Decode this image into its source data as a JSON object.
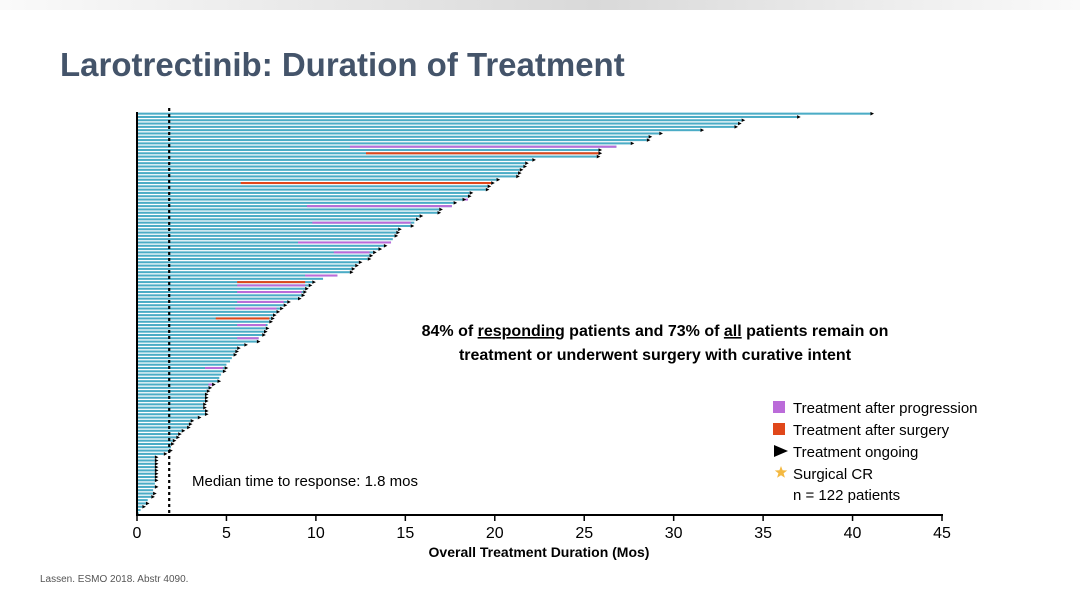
{
  "slide": {
    "title": "Larotrectinib: Duration of Treatment",
    "citation": "Lassen. ESMO 2018. Abstr 4090."
  },
  "colors": {
    "bar": "#4bacc6",
    "progression": "#bb6bd9",
    "surgery": "#e0471a",
    "median_line": "#000000",
    "title": "#44546a"
  },
  "chart_data": {
    "type": "bar",
    "orientation": "horizontal",
    "xlabel": "Overall Treatment Duration (Mos)",
    "ylabel": "",
    "xlim": [
      0,
      45
    ],
    "xticks": [
      0,
      5,
      10,
      15,
      20,
      25,
      30,
      35,
      40,
      45
    ],
    "n_patients": 122,
    "median_time_to_response": 1.8,
    "median_label": "Median time to response: 1.8 mos",
    "annotation": {
      "line1_parts": [
        "84% of ",
        "responding",
        " patients and 73% of ",
        "all",
        " patients remain on"
      ],
      "line2": "treatment or underwent surgery with curative intent"
    },
    "legend": {
      "placement": "bottom-right",
      "items": [
        {
          "label": "Treatment after progression",
          "marker": "square",
          "color": "#bb6bd9"
        },
        {
          "label": "Treatment after surgery",
          "marker": "square",
          "color": "#e0471a"
        },
        {
          "label": "Treatment ongoing",
          "marker": "arrow",
          "color": "#000000"
        },
        {
          "label": "Surgical CR",
          "marker": "star",
          "color": "#f4b942"
        }
      ],
      "footer": "n = 122 patients"
    },
    "durations": [
      41.0,
      36.9,
      33.8,
      33.6,
      33.4,
      31.5,
      29.2,
      28.6,
      28.5,
      27.6,
      26.8,
      25.8,
      25.8,
      25.7,
      22.1,
      21.7,
      21.6,
      21.4,
      21.3,
      21.2,
      20.1,
      19.8,
      19.6,
      19.5,
      18.6,
      18.5,
      18.2,
      17.7,
      17.6,
      16.9,
      16.8,
      15.8,
      15.6,
      15.5,
      15.3,
      14.6,
      14.5,
      14.4,
      14.3,
      14.2,
      13.8,
      13.5,
      13.2,
      13.0,
      12.9,
      12.4,
      12.2,
      12.0,
      11.9,
      11.2,
      10.4,
      9.8,
      9.6,
      9.4,
      9.3,
      9.2,
      9.0,
      8.4,
      8.2,
      8.0,
      7.8,
      7.6,
      7.5,
      7.4,
      7.3,
      7.2,
      7.1,
      7.0,
      6.8,
      6.7,
      6.0,
      5.6,
      5.5,
      5.4,
      5.3,
      5.2,
      5.0,
      4.9,
      4.8,
      4.7,
      4.6,
      4.5,
      4.2,
      4.0,
      3.9,
      3.8,
      3.8,
      3.8,
      3.7,
      3.7,
      3.8,
      3.8,
      3.4,
      3.0,
      2.9,
      2.8,
      2.5,
      2.3,
      2.2,
      2.0,
      1.9,
      1.9,
      1.8,
      1.5,
      1.0,
      1.0,
      1.0,
      1.0,
      1.0,
      1.0,
      1.0,
      1.0,
      1.0,
      1.0,
      0.9,
      0.9,
      0.8,
      0.6,
      0.5,
      0.3,
      0.2,
      0.1
    ],
    "ongoing_patients": [
      1,
      2,
      3,
      4,
      5,
      6,
      7,
      8,
      9,
      10,
      12,
      13,
      14,
      15,
      16,
      17,
      18,
      19,
      20,
      21,
      22,
      23,
      24,
      25,
      26,
      27,
      28,
      30,
      31,
      32,
      33,
      35,
      36,
      37,
      38,
      41,
      42,
      43,
      44,
      45,
      46,
      47,
      48,
      49,
      52,
      53,
      54,
      55,
      56,
      57,
      58,
      59,
      60,
      61,
      62,
      63,
      64,
      66,
      67,
      68,
      70,
      71,
      72,
      73,
      74,
      78,
      79,
      82,
      83,
      84,
      85,
      86,
      87,
      88,
      89,
      90,
      91,
      92,
      93,
      94,
      95,
      96,
      97,
      98,
      99,
      100,
      101,
      103,
      104,
      105,
      106,
      107,
      108,
      109,
      110,
      111,
      112,
      114,
      116,
      117,
      119,
      120
    ],
    "progression_segments": [
      {
        "patient": 11,
        "start": 11.9,
        "end": 26.8
      },
      {
        "patient": 27,
        "start": 18.2,
        "end": 18.5
      },
      {
        "patient": 29,
        "start": 9.5,
        "end": 17.6
      },
      {
        "patient": 34,
        "start": 9.8,
        "end": 15.3
      },
      {
        "patient": 40,
        "start": 9.0,
        "end": 14.2
      },
      {
        "patient": 43,
        "start": 11.0,
        "end": 13.0
      },
      {
        "patient": 50,
        "start": 9.4,
        "end": 11.2
      },
      {
        "patient": 53,
        "start": 5.6,
        "end": 9.4
      },
      {
        "patient": 55,
        "start": 5.6,
        "end": 9.2
      },
      {
        "patient": 58,
        "start": 5.6,
        "end": 8.2
      },
      {
        "patient": 60,
        "start": 5.5,
        "end": 7.8
      },
      {
        "patient": 65,
        "start": 5.6,
        "end": 7.2
      },
      {
        "patient": 69,
        "start": 5.6,
        "end": 6.8
      },
      {
        "patient": 78,
        "start": 3.8,
        "end": 4.8
      },
      {
        "patient": 83,
        "start": 4.0,
        "end": 4.2
      }
    ],
    "surgery_segments": [
      {
        "patient": 13,
        "start": 12.8,
        "end": 25.8
      },
      {
        "patient": 22,
        "start": 5.8,
        "end": 19.8
      },
      {
        "patient": 52,
        "start": 5.6,
        "end": 9.4
      },
      {
        "patient": 63,
        "start": 4.4,
        "end": 7.4
      }
    ]
  }
}
